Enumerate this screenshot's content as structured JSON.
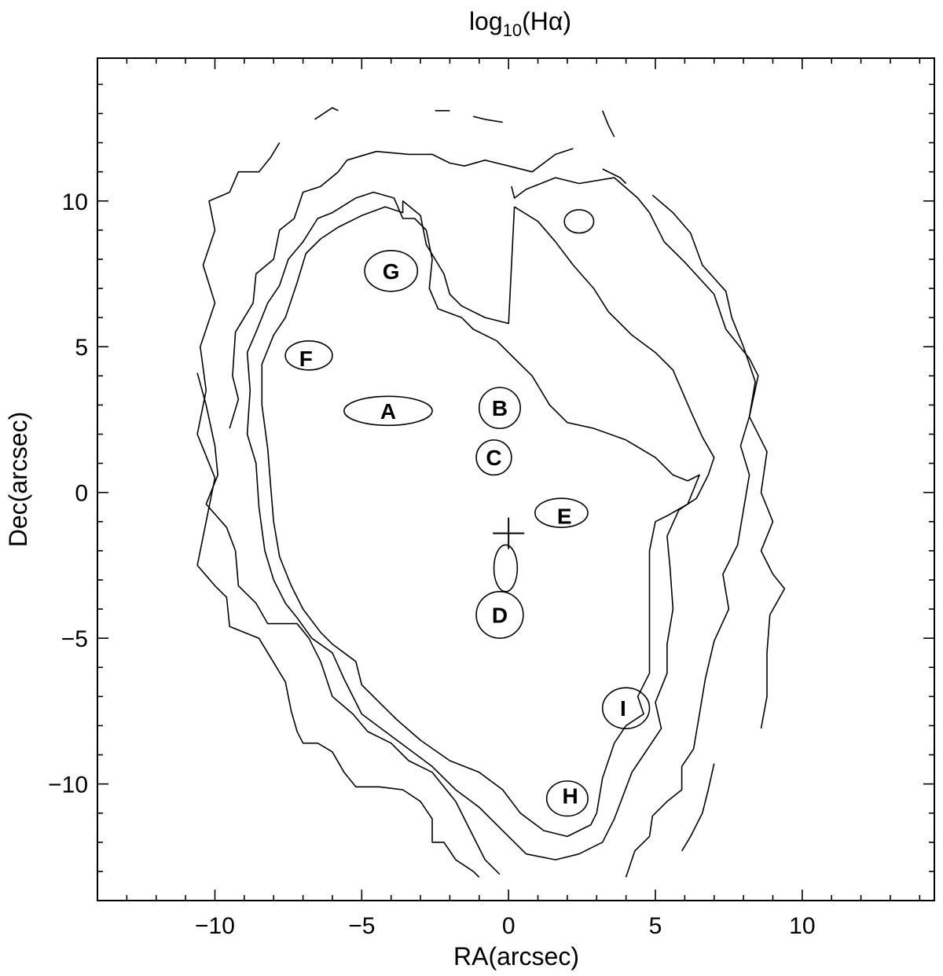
{
  "chart_data": {
    "type": "contour",
    "title_main": "log",
    "title_sub": "10",
    "title_tail": "(Hα)",
    "xlabel": "RA(arcsec)",
    "ylabel": "Dec(arcsec)",
    "xlim": [
      -14.0,
      14.5
    ],
    "ylim": [
      -14.0,
      14.9
    ],
    "x_ticks": [
      -10,
      -5,
      0,
      5,
      10
    ],
    "x_tick_labels": [
      "−10",
      "−5",
      "0",
      "5",
      "10"
    ],
    "y_ticks": [
      -10,
      -5,
      0,
      5,
      10
    ],
    "y_tick_labels": [
      "−10",
      "−5",
      "0",
      "5",
      "10"
    ],
    "center_marker": {
      "x": 0.0,
      "y": -1.4
    },
    "regions": [
      {
        "name": "A",
        "x": -4.1,
        "y": 2.8
      },
      {
        "name": "B",
        "x": -0.3,
        "y": 2.9
      },
      {
        "name": "C",
        "x": -0.5,
        "y": 1.2
      },
      {
        "name": "D",
        "x": -0.3,
        "y": -4.2
      },
      {
        "name": "E",
        "x": 1.9,
        "y": -0.8
      },
      {
        "name": "F",
        "x": -6.9,
        "y": 4.6
      },
      {
        "name": "G",
        "x": -4.0,
        "y": 7.6
      },
      {
        "name": "H",
        "x": 2.1,
        "y": -10.4
      },
      {
        "name": "I",
        "x": 3.9,
        "y": -7.4
      }
    ],
    "contours": [
      [
        [
          -10.6,
          -2.5
        ],
        [
          -10.3,
          -1.0
        ],
        [
          -10.0,
          0.5
        ],
        [
          -10.6,
          2.0
        ],
        [
          -10.3,
          3.5
        ],
        [
          -10.5,
          5.0
        ],
        [
          -10.0,
          6.5
        ],
        [
          -10.4,
          7.8
        ],
        [
          -10.0,
          9.0
        ],
        [
          -10.2,
          10.0
        ],
        [
          -9.5,
          10.3
        ],
        [
          -9.2,
          11.0
        ],
        [
          -8.5,
          11.0
        ],
        [
          -8.1,
          11.5
        ],
        [
          -7.8,
          12.0
        ]
      ],
      [
        [
          -6.6,
          12.8
        ],
        [
          -6.0,
          13.2
        ],
        [
          -5.8,
          13.1
        ]
      ],
      [
        [
          -2.5,
          13.1
        ],
        [
          -2.0,
          13.1
        ]
      ],
      [
        [
          -1.2,
          12.9
        ],
        [
          -0.8,
          12.8
        ],
        [
          -0.2,
          12.7
        ]
      ],
      [
        [
          3.2,
          13.1
        ],
        [
          3.4,
          12.6
        ],
        [
          3.6,
          12.2
        ]
      ],
      [
        [
          3.2,
          11.1
        ],
        [
          3.8,
          10.8
        ],
        [
          4.0,
          10.6
        ]
      ],
      [
        [
          4.9,
          10.2
        ],
        [
          5.6,
          9.6
        ],
        [
          6.2,
          8.9
        ],
        [
          6.6,
          7.8
        ],
        [
          7.4,
          6.9
        ],
        [
          7.6,
          6.0
        ],
        [
          8.0,
          5.0
        ],
        [
          8.4,
          3.8
        ],
        [
          8.2,
          2.6
        ],
        [
          8.8,
          1.4
        ],
        [
          8.6,
          0.0
        ],
        [
          9.0,
          -1.0
        ],
        [
          8.6,
          -2.0
        ],
        [
          9.0,
          -2.8
        ],
        [
          9.4,
          -3.3
        ],
        [
          8.9,
          -4.2
        ],
        [
          8.8,
          -5.5
        ],
        [
          8.8,
          -7.0
        ],
        [
          8.6,
          -8.1
        ]
      ],
      [
        [
          7.0,
          -9.3
        ],
        [
          6.8,
          -10.2
        ],
        [
          6.6,
          -11.0
        ],
        [
          6.2,
          -11.8
        ],
        [
          5.9,
          -12.3
        ]
      ],
      [
        [
          -10.6,
          -2.5
        ],
        [
          -10.0,
          -3.2
        ],
        [
          -9.6,
          -3.6
        ],
        [
          -9.5,
          -4.6
        ],
        [
          -8.5,
          -5.0
        ],
        [
          -8.2,
          -5.5
        ],
        [
          -7.6,
          -6.5
        ],
        [
          -7.4,
          -7.5
        ],
        [
          -7.2,
          -8.2
        ],
        [
          -7.0,
          -8.6
        ],
        [
          -6.5,
          -8.6
        ],
        [
          -6.0,
          -8.9
        ],
        [
          -5.6,
          -9.6
        ],
        [
          -5.2,
          -10.1
        ],
        [
          -4.4,
          -10.1
        ],
        [
          -3.6,
          -10.2
        ],
        [
          -3.0,
          -10.6
        ],
        [
          -2.6,
          -11.2
        ],
        [
          -2.6,
          -12.0
        ],
        [
          -2.2,
          -12.0
        ],
        [
          -1.8,
          -12.6
        ],
        [
          -1.2,
          -13.0
        ],
        [
          -1.0,
          -13.2
        ]
      ],
      [
        [
          -10.6,
          4.1
        ],
        [
          -10.3,
          3.0
        ],
        [
          -10.0,
          1.6
        ],
        [
          -9.9,
          0.6
        ],
        [
          -10.3,
          -0.4
        ],
        [
          -9.6,
          -1.2
        ],
        [
          -9.3,
          -2.0
        ],
        [
          -9.2,
          -3.2
        ],
        [
          -8.6,
          -3.8
        ],
        [
          -8.2,
          -4.5
        ],
        [
          -7.2,
          -4.5
        ],
        [
          -6.8,
          -5.0
        ],
        [
          -6.4,
          -5.8
        ],
        [
          -6.0,
          -7.0
        ],
        [
          -5.3,
          -7.6
        ],
        [
          -4.8,
          -8.2
        ],
        [
          -4.0,
          -8.6
        ],
        [
          -3.4,
          -9.2
        ],
        [
          -2.6,
          -9.6
        ],
        [
          -1.8,
          -10.6
        ],
        [
          -1.3,
          -11.6
        ],
        [
          -0.8,
          -12.6
        ],
        [
          -0.3,
          -13.1
        ]
      ],
      [
        [
          4.0,
          -13.2
        ],
        [
          4.3,
          -12.3
        ],
        [
          4.8,
          -11.8
        ],
        [
          4.9,
          -11.1
        ],
        [
          5.4,
          -10.6
        ],
        [
          5.9,
          -10.2
        ],
        [
          5.9,
          -9.4
        ],
        [
          6.3,
          -8.8
        ],
        [
          6.5,
          -7.6
        ],
        [
          6.7,
          -6.4
        ],
        [
          7.0,
          -5.1
        ],
        [
          7.5,
          -4.0
        ],
        [
          7.3,
          -2.8
        ],
        [
          7.8,
          -1.8
        ],
        [
          8.0,
          -0.6
        ],
        [
          8.2,
          0.6
        ],
        [
          7.9,
          1.6
        ],
        [
          8.2,
          2.6
        ],
        [
          8.5,
          4.0
        ],
        [
          8.2,
          4.6
        ],
        [
          7.4,
          5.6
        ],
        [
          7.0,
          6.8
        ],
        [
          6.0,
          7.9
        ],
        [
          5.3,
          8.6
        ],
        [
          4.8,
          9.6
        ],
        [
          4.4,
          10.1
        ],
        [
          3.6,
          10.8
        ],
        [
          2.4,
          10.6
        ],
        [
          1.6,
          10.8
        ],
        [
          0.6,
          10.4
        ],
        [
          0.2,
          10.1
        ],
        [
          0.1,
          10.5
        ]
      ],
      [
        [
          -9.5,
          2.2
        ],
        [
          -9.2,
          3.2
        ],
        [
          -9.4,
          4.0
        ],
        [
          -9.3,
          5.5
        ],
        [
          -8.7,
          6.5
        ],
        [
          -8.6,
          7.5
        ],
        [
          -8.0,
          8.0
        ],
        [
          -7.8,
          9.0
        ],
        [
          -7.3,
          9.4
        ],
        [
          -7.0,
          10.3
        ],
        [
          -6.4,
          10.5
        ],
        [
          -5.8,
          11.0
        ],
        [
          -5.5,
          11.4
        ],
        [
          -4.5,
          11.7
        ],
        [
          -3.4,
          11.6
        ],
        [
          -2.6,
          11.6
        ],
        [
          -2.0,
          11.3
        ],
        [
          -1.5,
          11.2
        ],
        [
          -0.8,
          11.4
        ],
        [
          0.0,
          11.2
        ],
        [
          0.8,
          11.0
        ],
        [
          1.6,
          11.6
        ],
        [
          2.2,
          11.8
        ]
      ],
      [
        [
          0.2,
          9.8
        ],
        [
          1.0,
          9.3
        ],
        [
          1.6,
          8.6
        ],
        [
          2.2,
          7.8
        ],
        [
          2.9,
          7.0
        ],
        [
          3.4,
          6.2
        ],
        [
          4.2,
          5.4
        ],
        [
          5.0,
          4.8
        ],
        [
          5.6,
          4.2
        ],
        [
          6.2,
          2.8
        ],
        [
          6.6,
          1.9
        ],
        [
          7.0,
          1.2
        ],
        [
          6.8,
          0.6
        ],
        [
          6.4,
          -0.2
        ],
        [
          5.8,
          -0.6
        ],
        [
          5.4,
          -1.5
        ],
        [
          5.5,
          -2.6
        ],
        [
          5.6,
          -4.0
        ],
        [
          5.4,
          -5.2
        ],
        [
          5.4,
          -6.2
        ],
        [
          5.0,
          -7.2
        ],
        [
          5.2,
          -8.1
        ],
        [
          4.6,
          -9.0
        ],
        [
          4.2,
          -9.6
        ],
        [
          3.9,
          -10.4
        ],
        [
          3.6,
          -11.2
        ],
        [
          3.2,
          -12.0
        ],
        [
          2.4,
          -12.4
        ],
        [
          1.6,
          -12.6
        ],
        [
          0.6,
          -12.4
        ],
        [
          -0.4,
          -11.4
        ],
        [
          -1.0,
          -10.8
        ],
        [
          -1.8,
          -10.2
        ],
        [
          -2.6,
          -9.4
        ],
        [
          -3.4,
          -8.8
        ],
        [
          -4.2,
          -8.2
        ],
        [
          -5.0,
          -7.6
        ],
        [
          -5.6,
          -6.4
        ],
        [
          -6.0,
          -5.5
        ],
        [
          -6.7,
          -5.0
        ],
        [
          -7.2,
          -4.3
        ],
        [
          -7.6,
          -3.8
        ],
        [
          -8.0,
          -3.0
        ],
        [
          -8.3,
          -2.0
        ],
        [
          -8.5,
          -0.5
        ],
        [
          -8.6,
          1.0
        ],
        [
          -8.9,
          2.0
        ],
        [
          -8.8,
          3.5
        ],
        [
          -8.9,
          4.8
        ],
        [
          -8.6,
          5.5
        ],
        [
          -8.2,
          6.5
        ],
        [
          -7.8,
          7.1
        ],
        [
          -7.5,
          8.0
        ],
        [
          -7.0,
          8.6
        ],
        [
          -6.5,
          9.4
        ],
        [
          -6.0,
          9.6
        ],
        [
          -5.2,
          10.1
        ],
        [
          -4.6,
          10.3
        ],
        [
          -3.9,
          10.1
        ],
        [
          -3.6,
          9.4
        ],
        [
          -3.2,
          9.4
        ],
        [
          -2.8,
          9.0
        ],
        [
          -2.6,
          8.0
        ],
        [
          -2.7,
          7.0
        ],
        [
          -2.4,
          6.3
        ],
        [
          -1.6,
          6.0
        ],
        [
          -1.2,
          5.6
        ],
        [
          -0.4,
          5.2
        ],
        [
          0.2,
          4.6
        ],
        [
          0.8,
          4.0
        ],
        [
          1.4,
          3.0
        ],
        [
          2.0,
          2.4
        ],
        [
          2.9,
          2.2
        ],
        [
          4.0,
          1.8
        ],
        [
          5.0,
          1.2
        ],
        [
          5.6,
          0.6
        ],
        [
          6.1,
          0.4
        ],
        [
          6.5,
          0.6
        ],
        [
          6.1,
          -0.4
        ],
        [
          5.4,
          -0.8
        ],
        [
          5.0,
          -1.0
        ],
        [
          4.8,
          -2.0
        ],
        [
          4.8,
          -2.6
        ],
        [
          4.8,
          -4.0
        ],
        [
          4.8,
          -5.0
        ],
        [
          4.8,
          -6.2
        ],
        [
          4.4,
          -7.0
        ],
        [
          4.6,
          -7.6
        ],
        [
          4.0,
          -8.0
        ],
        [
          3.6,
          -8.6
        ],
        [
          3.2,
          -9.8
        ],
        [
          3.0,
          -11.0
        ],
        [
          2.8,
          -11.4
        ],
        [
          2.0,
          -11.8
        ],
        [
          1.2,
          -11.6
        ],
        [
          0.4,
          -11.0
        ],
        [
          -0.2,
          -10.2
        ],
        [
          -1.0,
          -9.6
        ],
        [
          -2.0,
          -9.2
        ],
        [
          -3.0,
          -8.5
        ],
        [
          -3.8,
          -7.8
        ],
        [
          -4.4,
          -7.2
        ],
        [
          -5.0,
          -6.6
        ],
        [
          -5.2,
          -5.8
        ],
        [
          -6.0,
          -5.2
        ],
        [
          -6.4,
          -4.8
        ],
        [
          -7.0,
          -4.0
        ],
        [
          -7.4,
          -3.2
        ],
        [
          -7.8,
          -2.2
        ],
        [
          -8.0,
          -1.0
        ],
        [
          -8.1,
          0.2
        ],
        [
          -8.2,
          1.5
        ],
        [
          -8.4,
          3.0
        ],
        [
          -8.4,
          4.4
        ],
        [
          -8.0,
          5.4
        ],
        [
          -7.6,
          6.0
        ],
        [
          -7.2,
          7.2
        ],
        [
          -6.9,
          8.2
        ],
        [
          -6.4,
          8.7
        ],
        [
          -5.8,
          9.1
        ],
        [
          -5.0,
          9.5
        ],
        [
          -4.2,
          9.8
        ],
        [
          -3.6,
          9.6
        ],
        [
          -3.6,
          10.0
        ],
        [
          -3.0,
          9.5
        ],
        [
          -2.8,
          8.5
        ],
        [
          -2.2,
          7.5
        ],
        [
          -2.0,
          6.8
        ],
        [
          -1.6,
          6.4
        ],
        [
          -0.8,
          6.0
        ],
        [
          0.0,
          5.8
        ],
        [
          0.2,
          9.8
        ]
      ]
    ],
    "contour_levels_note": ""
  }
}
